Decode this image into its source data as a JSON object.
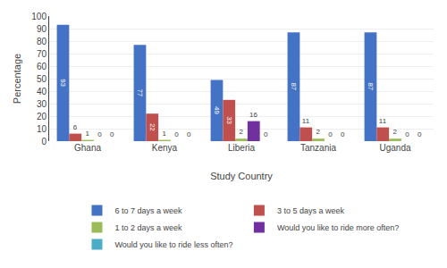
{
  "chart_data": {
    "type": "bar",
    "categories": [
      "Ghana",
      "Kenya",
      "Liberia",
      "Tanzania",
      "Uganda"
    ],
    "series": [
      {
        "name": "6 to 7 days a week",
        "color": "#4472C4",
        "values": [
          93,
          77,
          49,
          87,
          87
        ]
      },
      {
        "name": "3 to 5 days a week",
        "color": "#C0504D",
        "values": [
          6,
          22,
          33,
          11,
          11
        ]
      },
      {
        "name": "1 to 2 days a week",
        "color": "#9BBB59",
        "values": [
          1,
          1,
          2,
          2,
          2
        ]
      },
      {
        "name": "Would you like to ride more often?",
        "color": "#7030A0",
        "values": [
          0,
          0,
          16,
          0,
          0
        ]
      },
      {
        "name": "Would you like to ride less often?",
        "color": "#4BACC6",
        "values": [
          0,
          0,
          0,
          0,
          0
        ]
      }
    ],
    "xlabel": "Study Country",
    "ylabel": "Percentage",
    "ylim": [
      0,
      100
    ],
    "yticks": [
      0,
      10,
      20,
      30,
      40,
      50,
      60,
      70,
      80,
      90,
      100
    ],
    "grid": true,
    "data_labels": true,
    "legend": "bottom"
  }
}
